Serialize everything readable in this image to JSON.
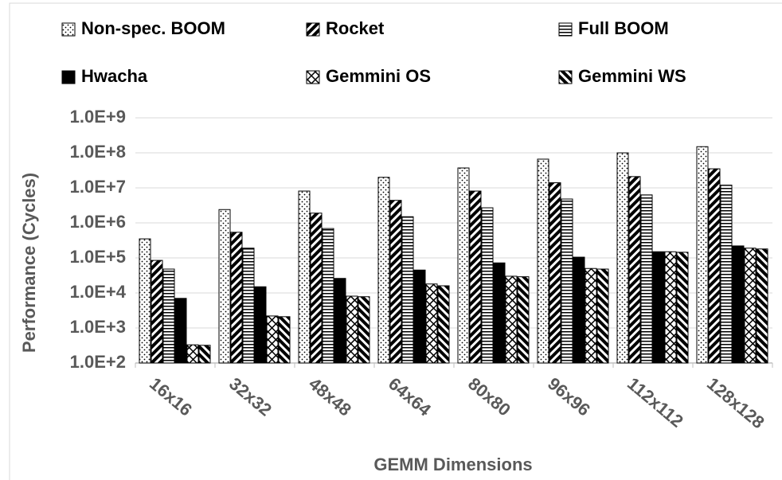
{
  "chart_data": {
    "type": "bar",
    "log": true,
    "grid": true,
    "xlabel": "GEMM Dimensions",
    "ylabel": "Performance (Cycles)",
    "categories": [
      "16x16",
      "32x32",
      "48x48",
      "64x64",
      "80x80",
      "96x96",
      "112x112",
      "128x128"
    ],
    "ylim": [
      100,
      1000000000
    ],
    "yticks": [
      {
        "value": 100,
        "label": "1.0E+2"
      },
      {
        "value": 1000,
        "label": "1.0E+3"
      },
      {
        "value": 10000,
        "label": "1.0E+4"
      },
      {
        "value": 100000,
        "label": "1.0E+5"
      },
      {
        "value": 1000000,
        "label": "1.0E+6"
      },
      {
        "value": 10000000,
        "label": "1.0E+7"
      },
      {
        "value": 100000000,
        "label": "1.0E+8"
      },
      {
        "value": 1000000000,
        "label": "1.0E+9"
      }
    ],
    "series": [
      {
        "name": "Non-spec. BOOM",
        "color": "#000000",
        "values": [
          350000,
          2400000,
          8100000,
          20000000,
          37000000,
          66000000,
          100000000,
          150000000
        ]
      },
      {
        "name": "Rocket",
        "color": "#000000",
        "values": [
          85000,
          540000,
          1900000,
          4400000,
          8100000,
          14000000,
          21000000,
          35000000
        ]
      },
      {
        "name": "Full BOOM",
        "color": "#000000",
        "values": [
          48000,
          190000,
          690000,
          1500000,
          2700000,
          4800000,
          6300000,
          12000000
        ]
      },
      {
        "name": "Hwacha",
        "color": "#000000",
        "values": [
          7000,
          15000,
          26000,
          45000,
          72000,
          105000,
          150000,
          220000
        ]
      },
      {
        "name": "Gemmini OS",
        "color": "#000000",
        "values": [
          330,
          2200,
          8100,
          18000,
          30000,
          50000,
          150000,
          190000
        ]
      },
      {
        "name": "Gemmini WS",
        "color": "#000000",
        "values": [
          320,
          2100,
          7800,
          16000,
          29000,
          48000,
          145000,
          180000
        ]
      }
    ]
  }
}
